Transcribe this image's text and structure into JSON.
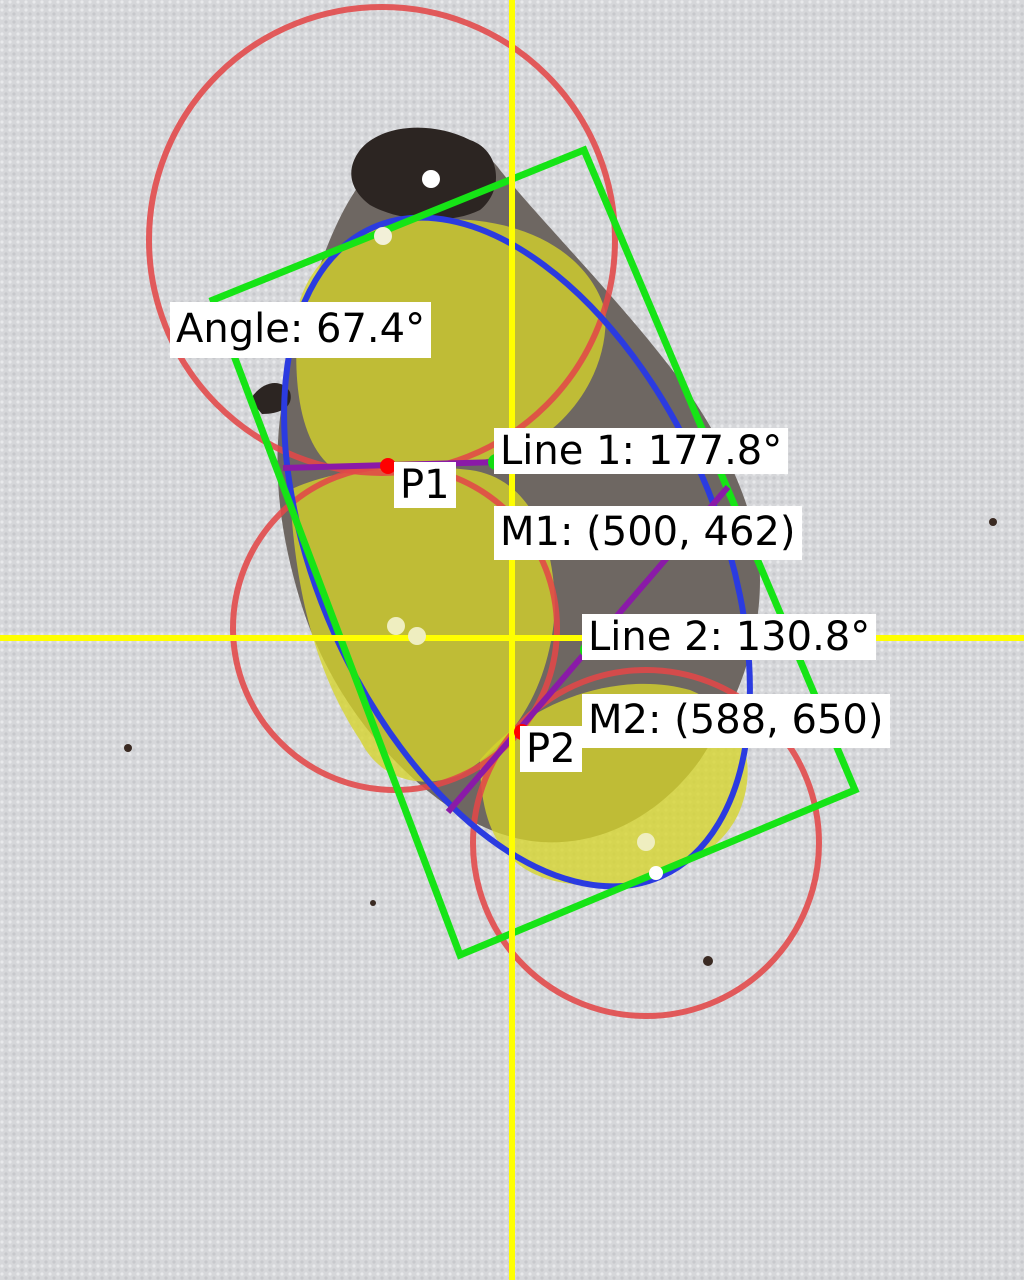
{
  "labels": {
    "angle": "Angle: 67.4°",
    "p1": "P1",
    "p2": "P2",
    "line1": "Line 1: 177.8°",
    "line2": "Line 2: 130.8°",
    "m1": "M1: (500, 462)",
    "m2": "M2: (588, 650)"
  },
  "colors": {
    "background": "#d9dadc",
    "circle": "#e24848",
    "ellipse": "#2b3be0",
    "bounding_box": "#16e416",
    "crosshair": "#ffff00",
    "segment_fill": "#d6d52a",
    "purple_line": "#8a1aa8",
    "point_red": "#ff0000",
    "point_green": "#11dd11"
  }
}
